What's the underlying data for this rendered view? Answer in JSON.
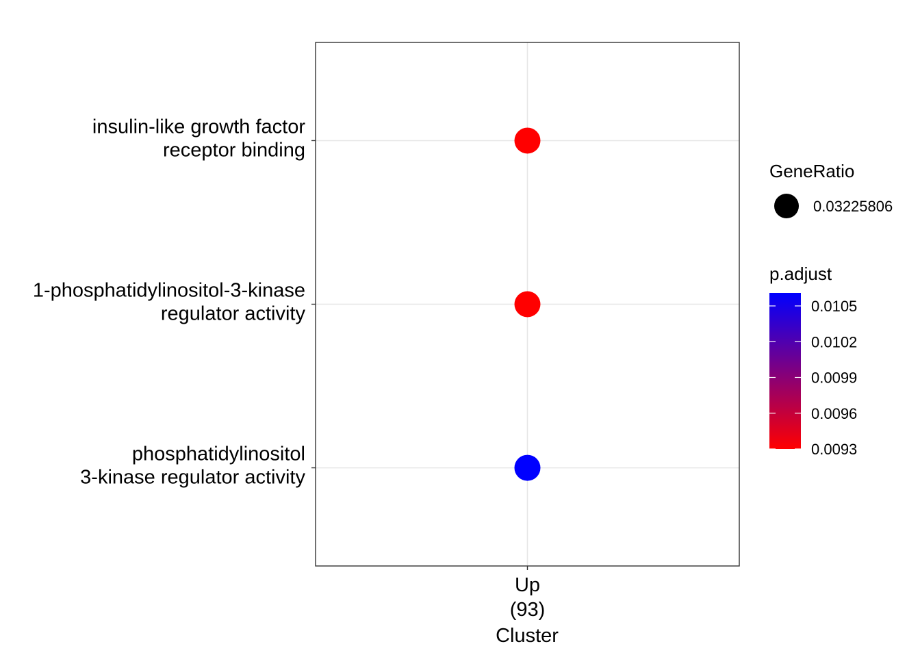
{
  "chart_data": {
    "type": "scatter",
    "title": "",
    "xlabel": "Cluster",
    "ylabel": "",
    "grid": true,
    "categories_x": [
      {
        "name": "Up",
        "count": "(93)"
      }
    ],
    "categories_y": [
      {
        "lines": [
          "insulin-like growth factor",
          "receptor binding"
        ]
      },
      {
        "lines": [
          "1-phosphatidylinositol-3-kinase",
          "regulator activity"
        ]
      },
      {
        "lines": [
          "phosphatidylinositol",
          "3-kinase regulator activity"
        ]
      }
    ],
    "points": [
      {
        "x": "Up",
        "y_index": 0,
        "gene_ratio": 0.03225806,
        "p_adjust": 0.0093,
        "color": "#ff0000"
      },
      {
        "x": "Up",
        "y_index": 1,
        "gene_ratio": 0.03225806,
        "p_adjust": 0.0093,
        "color": "#ff0000"
      },
      {
        "x": "Up",
        "y_index": 2,
        "gene_ratio": 0.03225806,
        "p_adjust": 0.0106,
        "color": "#0000ff"
      }
    ],
    "legend": {
      "placement": "right",
      "size": {
        "title": "GeneRatio",
        "label": "0.03225806"
      },
      "color": {
        "title": "p.adjust",
        "low_color": "#ff0000",
        "high_color": "#0000ff",
        "ticks": [
          "0.0105",
          "0.0102",
          "0.0099",
          "0.0096",
          "0.0093"
        ]
      }
    }
  }
}
